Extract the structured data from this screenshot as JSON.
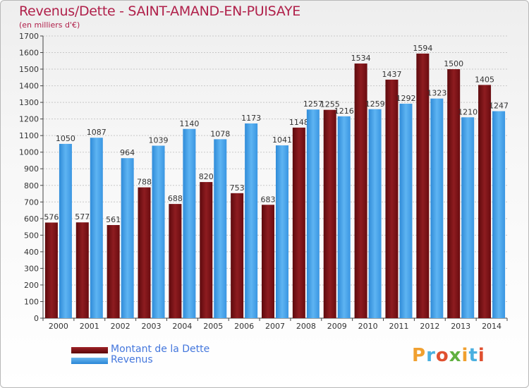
{
  "header": {
    "title": "Revenus/Dette - SAINT-AMAND-EN-PUISAYE",
    "subtitle": "(en milliers d'€)"
  },
  "legend": [
    {
      "label": "Montant de la Dette",
      "color": "#7a0e12"
    },
    {
      "label": "Revenus",
      "color": "#3d9be6"
    }
  ],
  "logo": {
    "text": "Proxiti",
    "colors": [
      "#f0a030",
      "#4ab0e0",
      "#e05030",
      "#60b040",
      "#f0a030",
      "#4ab0e0",
      "#e05030"
    ]
  },
  "chart_data": {
    "type": "bar",
    "categories": [
      "2000",
      "2001",
      "2002",
      "2003",
      "2004",
      "2005",
      "2006",
      "2007",
      "2008",
      "2009",
      "2010",
      "2011",
      "2012",
      "2013",
      "2014"
    ],
    "series": [
      {
        "name": "Montant de la Dette",
        "color": "#7a0e12",
        "values": [
          576,
          577,
          561,
          788,
          688,
          820,
          753,
          683,
          1148,
          1255,
          1534,
          1437,
          1594,
          1500,
          1405
        ]
      },
      {
        "name": "Revenus",
        "color": "#3d9be6",
        "values": [
          1050,
          1087,
          964,
          1039,
          1140,
          1078,
          1173,
          1041,
          1257,
          1216,
          1259,
          1292,
          1323,
          1210,
          1247
        ]
      }
    ],
    "ylim": [
      0,
      1700
    ],
    "yticks": [
      0,
      100,
      200,
      300,
      400,
      500,
      600,
      700,
      800,
      900,
      1000,
      1100,
      1200,
      1300,
      1400,
      1500,
      1600,
      1700
    ],
    "grid": true
  }
}
